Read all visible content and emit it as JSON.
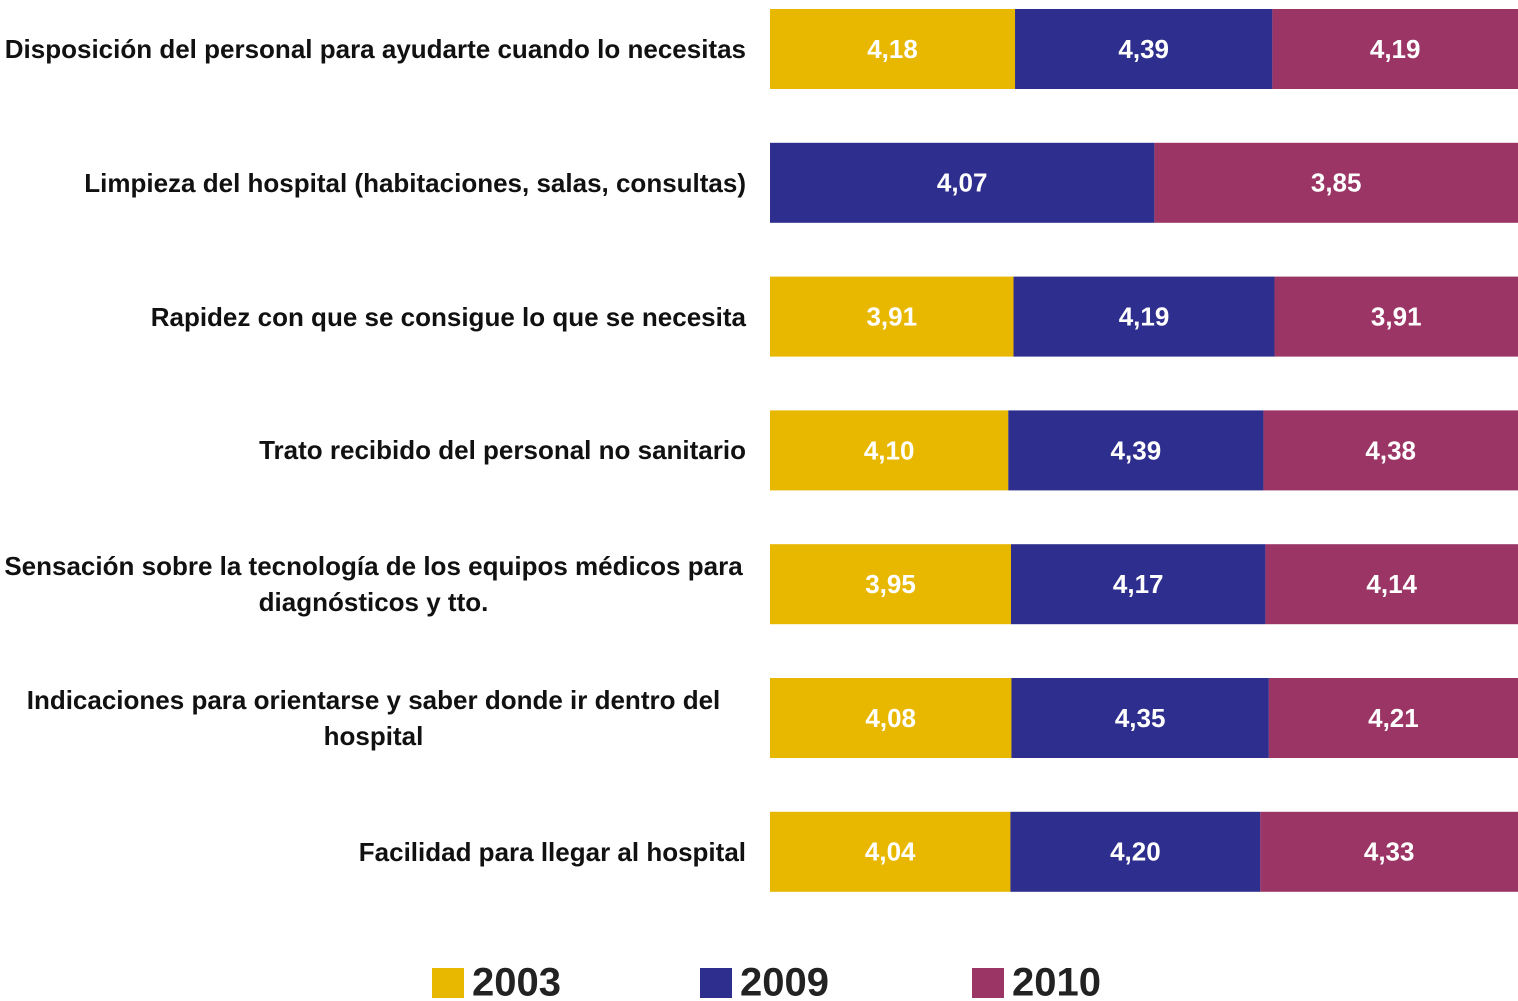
{
  "chart_data": {
    "type": "bar",
    "categories": [
      "Disposición del personal para ayudarte cuando lo necesitas",
      "Limpieza del hospital (habitaciones, salas, consultas)",
      "Rapidez con que se consigue lo que se necesita",
      "Trato recibido del personal no sanitario",
      "Sensación sobre la tecnología de los equipos médicos para diagnósticos y tto.",
      "Indicaciones para orientarse y saber donde ir dentro del hospital",
      "Facilidad para llegar al hospital"
    ],
    "series": [
      {
        "name": "2003",
        "color": "#e8b800",
        "values": [
          4.18,
          null,
          3.91,
          4.1,
          3.95,
          4.08,
          4.04
        ],
        "value_labels": [
          "4,18",
          null,
          "3,91",
          "4,10",
          "3,95",
          "4,08",
          "4,04"
        ]
      },
      {
        "name": "2009",
        "color": "#2e2e8e",
        "values": [
          4.39,
          4.07,
          4.19,
          4.39,
          4.17,
          4.35,
          4.2
        ],
        "value_labels": [
          "4,39",
          "4,07",
          "4,19",
          "4,39",
          "4,17",
          "4,35",
          "4,20"
        ]
      },
      {
        "name": "2010",
        "color": "#9b3565",
        "values": [
          4.19,
          3.85,
          3.91,
          4.38,
          4.14,
          4.21,
          4.33
        ],
        "value_labels": [
          "4,19",
          "3,85",
          "3,91",
          "4,38",
          "4,14",
          "4,21",
          "4,33"
        ]
      }
    ],
    "legend": "bottom"
  }
}
